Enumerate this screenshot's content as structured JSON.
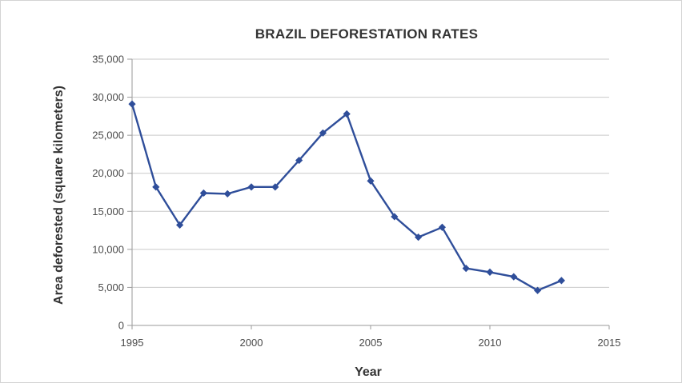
{
  "chart_data": {
    "type": "line",
    "title": "BRAZIL DEFORESTATION RATES",
    "xlabel": "Year",
    "ylabel": "Area deforested (square kilometers)",
    "xlim": [
      1995,
      2015
    ],
    "ylim": [
      0,
      35000
    ],
    "x_ticks": [
      1995,
      2000,
      2005,
      2010,
      2015
    ],
    "x_tick_labels": [
      "1995",
      "2000",
      "2005",
      "2010",
      "2015"
    ],
    "y_ticks": [
      0,
      5000,
      10000,
      15000,
      20000,
      25000,
      30000,
      35000
    ],
    "y_tick_labels": [
      "0",
      "5,000",
      "10,000",
      "15,000",
      "20,000",
      "25,000",
      "30,000",
      "35,000"
    ],
    "grid": "horizontal",
    "legend": "none",
    "series": [
      {
        "color": "#2f4e9a",
        "marker": "diamond",
        "x": [
          1995,
          1996,
          1997,
          1998,
          1999,
          2000,
          2001,
          2002,
          2003,
          2004,
          2005,
          2006,
          2007,
          2008,
          2009,
          2010,
          2011,
          2012,
          2013
        ],
        "y": [
          29100,
          18200,
          13200,
          17400,
          17300,
          18200,
          18200,
          21700,
          25300,
          27800,
          19000,
          14300,
          11600,
          12900,
          7500,
          7000,
          6400,
          4600,
          5900
        ]
      }
    ]
  }
}
